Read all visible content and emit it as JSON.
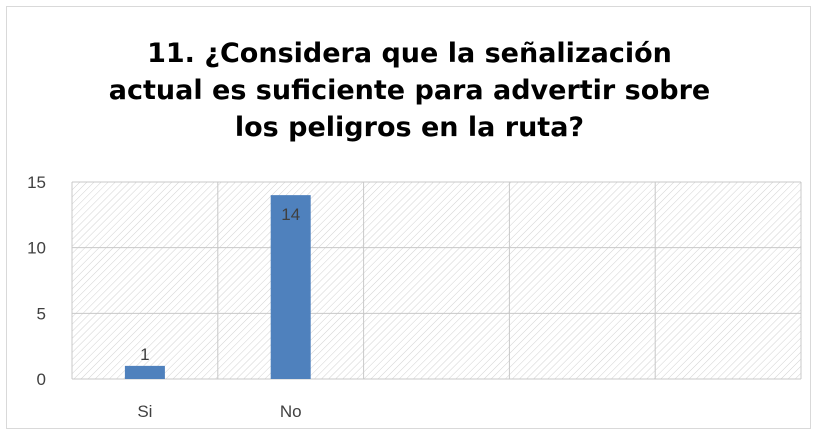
{
  "chart_data": {
    "type": "bar",
    "title_lines": [
      "11. ¿Considera que la señalización",
      "actual es suficiente para advertir sobre",
      "los peligros en la ruta?"
    ],
    "categories": [
      "Si",
      "No"
    ],
    "values": [
      1,
      14
    ],
    "data_labels": [
      "1",
      "14"
    ],
    "slot_count": 5,
    "ylim": [
      0,
      15
    ],
    "yticks": [
      0,
      5,
      10,
      15
    ],
    "grid": true,
    "legend": "none",
    "bar_color": "#4f81bd",
    "grid_color": "#c8c8c8"
  }
}
